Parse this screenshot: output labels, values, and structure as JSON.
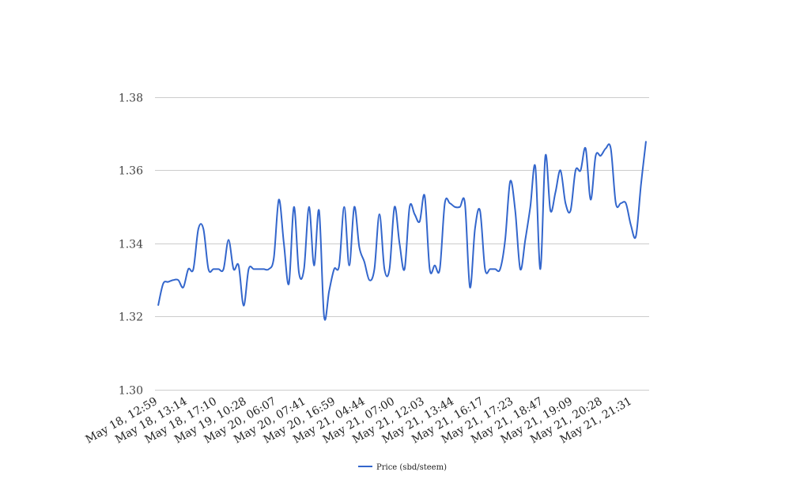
{
  "colors": {
    "series": "#3366cc",
    "grid": "#cccccc",
    "background": "#ffffff"
  },
  "chart_data": {
    "type": "line",
    "title": "",
    "xlabel": "",
    "ylabel": "",
    "ylim": [
      1.3,
      1.38
    ],
    "yticks": [
      "1.30",
      "1.32",
      "1.34",
      "1.36",
      "1.38"
    ],
    "ytick_values": [
      1.3,
      1.32,
      1.34,
      1.36,
      1.38
    ],
    "grid": true,
    "legend_position": "bottom",
    "x_tick_labels": [
      "May 18, 12:59",
      "May 18, 13:14",
      "May 18, 17:10",
      "May 19, 10:28",
      "May 20, 06:07",
      "May 20, 07:41",
      "May 20, 16:59",
      "May 21, 04:44",
      "May 21, 07:00",
      "May 21, 12:03",
      "May 21, 13:44",
      "May 21, 16:17",
      "May 21, 17:23",
      "May 21, 18:47",
      "May 21, 19:09",
      "May 21, 20:28",
      "May 21, 21:31"
    ],
    "series": [
      {
        "name": "Price (sbd/steem)",
        "values": [
          1.323,
          1.329,
          1.3295,
          1.33,
          1.33,
          1.328,
          1.333,
          1.333,
          1.344,
          1.344,
          1.333,
          1.333,
          1.333,
          1.333,
          1.341,
          1.333,
          1.334,
          1.323,
          1.333,
          1.333,
          1.333,
          1.333,
          1.333,
          1.336,
          1.352,
          1.34,
          1.329,
          1.35,
          1.332,
          1.333,
          1.35,
          1.334,
          1.349,
          1.32,
          1.327,
          1.333,
          1.334,
          1.35,
          1.334,
          1.35,
          1.339,
          1.335,
          1.33,
          1.333,
          1.348,
          1.333,
          1.333,
          1.35,
          1.34,
          1.333,
          1.35,
          1.348,
          1.346,
          1.353,
          1.333,
          1.334,
          1.333,
          1.351,
          1.351,
          1.35,
          1.35,
          1.351,
          1.328,
          1.344,
          1.349,
          1.333,
          1.333,
          1.333,
          1.333,
          1.341,
          1.357,
          1.349,
          1.333,
          1.341,
          1.35,
          1.361,
          1.333,
          1.364,
          1.349,
          1.354,
          1.36,
          1.351,
          1.349,
          1.36,
          1.36,
          1.366,
          1.352,
          1.364,
          1.364,
          1.366,
          1.366,
          1.351,
          1.351,
          1.351,
          1.345,
          1.342,
          1.356,
          1.368
        ]
      }
    ]
  }
}
